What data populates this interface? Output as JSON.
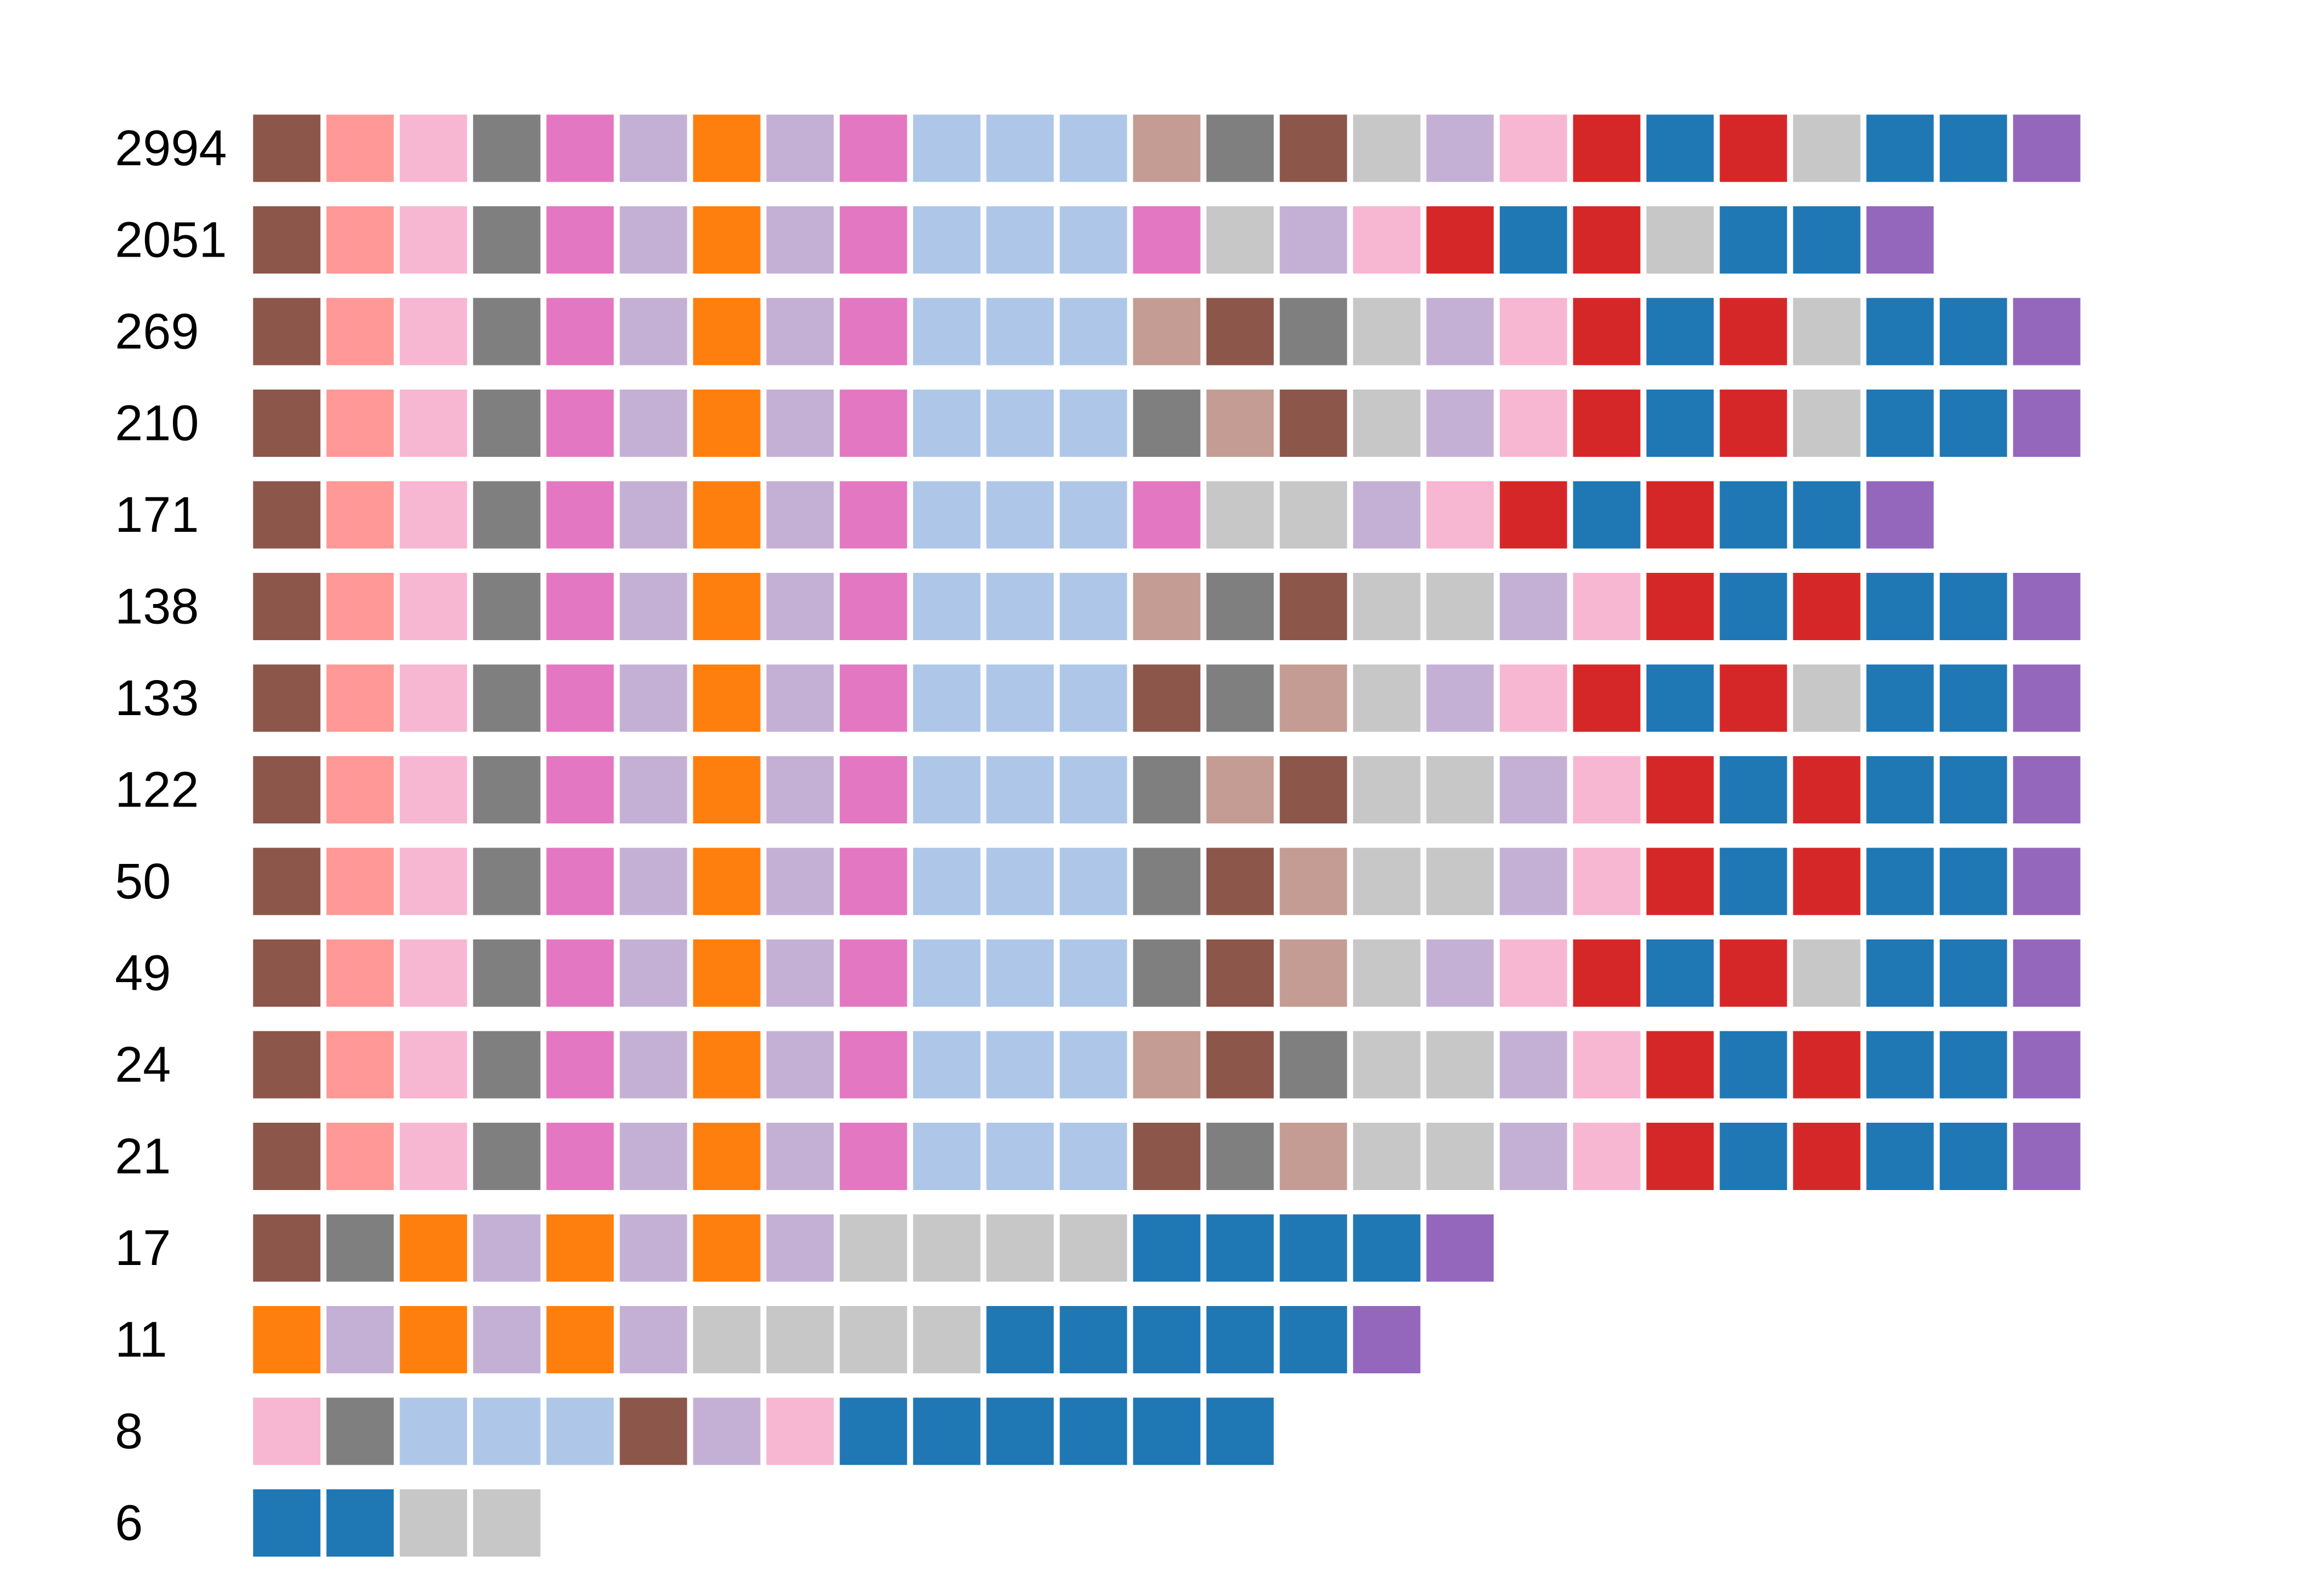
{
  "chart_data": {
    "type": "heatmap",
    "title": "",
    "xlabel": "",
    "ylabel": "",
    "grid": false,
    "legend": "none",
    "palette": {
      "brown": "#8c564b",
      "salmon": "#ff9896",
      "pink": "#f7b6d2",
      "gray": "#7f7f7f",
      "magenta": "#e377c2",
      "lavender": "#c5b0d5",
      "orange": "#ff7f0e",
      "lightblue": "#aec7e8",
      "rosybrown": "#c49c94",
      "lightgray": "#c7c7c7",
      "red": "#d62728",
      "blue": "#1f77b4",
      "purple": "#9467bd"
    },
    "rows": [
      {
        "label": "2994",
        "cells": [
          "brown",
          "salmon",
          "pink",
          "gray",
          "magenta",
          "lavender",
          "orange",
          "lavender",
          "magenta",
          "lightblue",
          "lightblue",
          "lightblue",
          "rosybrown",
          "gray",
          "brown",
          "lightgray",
          "lavender",
          "pink",
          "red",
          "blue",
          "red",
          "lightgray",
          "blue",
          "blue",
          "purple"
        ]
      },
      {
        "label": "2051",
        "cells": [
          "brown",
          "salmon",
          "pink",
          "gray",
          "magenta",
          "lavender",
          "orange",
          "lavender",
          "magenta",
          "lightblue",
          "lightblue",
          "lightblue",
          "magenta",
          "lightgray",
          "lavender",
          "pink",
          "red",
          "blue",
          "red",
          "lightgray",
          "blue",
          "blue",
          "purple"
        ]
      },
      {
        "label": "269",
        "cells": [
          "brown",
          "salmon",
          "pink",
          "gray",
          "magenta",
          "lavender",
          "orange",
          "lavender",
          "magenta",
          "lightblue",
          "lightblue",
          "lightblue",
          "rosybrown",
          "brown",
          "gray",
          "lightgray",
          "lavender",
          "pink",
          "red",
          "blue",
          "red",
          "lightgray",
          "blue",
          "blue",
          "purple"
        ]
      },
      {
        "label": "210",
        "cells": [
          "brown",
          "salmon",
          "pink",
          "gray",
          "magenta",
          "lavender",
          "orange",
          "lavender",
          "magenta",
          "lightblue",
          "lightblue",
          "lightblue",
          "gray",
          "rosybrown",
          "brown",
          "lightgray",
          "lavender",
          "pink",
          "red",
          "blue",
          "red",
          "lightgray",
          "blue",
          "blue",
          "purple"
        ]
      },
      {
        "label": "171",
        "cells": [
          "brown",
          "salmon",
          "pink",
          "gray",
          "magenta",
          "lavender",
          "orange",
          "lavender",
          "magenta",
          "lightblue",
          "lightblue",
          "lightblue",
          "magenta",
          "lightgray",
          "lightgray",
          "lavender",
          "pink",
          "red",
          "blue",
          "red",
          "blue",
          "blue",
          "purple"
        ]
      },
      {
        "label": "138",
        "cells": [
          "brown",
          "salmon",
          "pink",
          "gray",
          "magenta",
          "lavender",
          "orange",
          "lavender",
          "magenta",
          "lightblue",
          "lightblue",
          "lightblue",
          "rosybrown",
          "gray",
          "brown",
          "lightgray",
          "lightgray",
          "lavender",
          "pink",
          "red",
          "blue",
          "red",
          "blue",
          "blue",
          "purple"
        ]
      },
      {
        "label": "133",
        "cells": [
          "brown",
          "salmon",
          "pink",
          "gray",
          "magenta",
          "lavender",
          "orange",
          "lavender",
          "magenta",
          "lightblue",
          "lightblue",
          "lightblue",
          "brown",
          "gray",
          "rosybrown",
          "lightgray",
          "lavender",
          "pink",
          "red",
          "blue",
          "red",
          "lightgray",
          "blue",
          "blue",
          "purple"
        ]
      },
      {
        "label": "122",
        "cells": [
          "brown",
          "salmon",
          "pink",
          "gray",
          "magenta",
          "lavender",
          "orange",
          "lavender",
          "magenta",
          "lightblue",
          "lightblue",
          "lightblue",
          "gray",
          "rosybrown",
          "brown",
          "lightgray",
          "lightgray",
          "lavender",
          "pink",
          "red",
          "blue",
          "red",
          "blue",
          "blue",
          "purple"
        ]
      },
      {
        "label": "50",
        "cells": [
          "brown",
          "salmon",
          "pink",
          "gray",
          "magenta",
          "lavender",
          "orange",
          "lavender",
          "magenta",
          "lightblue",
          "lightblue",
          "lightblue",
          "gray",
          "brown",
          "rosybrown",
          "lightgray",
          "lightgray",
          "lavender",
          "pink",
          "red",
          "blue",
          "red",
          "blue",
          "blue",
          "purple"
        ]
      },
      {
        "label": "49",
        "cells": [
          "brown",
          "salmon",
          "pink",
          "gray",
          "magenta",
          "lavender",
          "orange",
          "lavender",
          "magenta",
          "lightblue",
          "lightblue",
          "lightblue",
          "gray",
          "brown",
          "rosybrown",
          "lightgray",
          "lavender",
          "pink",
          "red",
          "blue",
          "red",
          "lightgray",
          "blue",
          "blue",
          "purple"
        ]
      },
      {
        "label": "24",
        "cells": [
          "brown",
          "salmon",
          "pink",
          "gray",
          "magenta",
          "lavender",
          "orange",
          "lavender",
          "magenta",
          "lightblue",
          "lightblue",
          "lightblue",
          "rosybrown",
          "brown",
          "gray",
          "lightgray",
          "lightgray",
          "lavender",
          "pink",
          "red",
          "blue",
          "red",
          "blue",
          "blue",
          "purple"
        ]
      },
      {
        "label": "21",
        "cells": [
          "brown",
          "salmon",
          "pink",
          "gray",
          "magenta",
          "lavender",
          "orange",
          "lavender",
          "magenta",
          "lightblue",
          "lightblue",
          "lightblue",
          "brown",
          "gray",
          "rosybrown",
          "lightgray",
          "lightgray",
          "lavender",
          "pink",
          "red",
          "blue",
          "red",
          "blue",
          "blue",
          "purple"
        ]
      },
      {
        "label": "17",
        "cells": [
          "brown",
          "gray",
          "orange",
          "lavender",
          "orange",
          "lavender",
          "orange",
          "lavender",
          "lightgray",
          "lightgray",
          "lightgray",
          "lightgray",
          "blue",
          "blue",
          "blue",
          "blue",
          "purple"
        ]
      },
      {
        "label": "11",
        "cells": [
          "orange",
          "lavender",
          "orange",
          "lavender",
          "orange",
          "lavender",
          "lightgray",
          "lightgray",
          "lightgray",
          "lightgray",
          "blue",
          "blue",
          "blue",
          "blue",
          "blue",
          "purple"
        ]
      },
      {
        "label": "8",
        "cells": [
          "pink",
          "gray",
          "lightblue",
          "lightblue",
          "lightblue",
          "brown",
          "lavender",
          "pink",
          "blue",
          "blue",
          "blue",
          "blue",
          "blue",
          "blue"
        ]
      },
      {
        "label": "6",
        "cells": [
          "blue",
          "blue",
          "lightgray",
          "lightgray"
        ]
      }
    ]
  }
}
